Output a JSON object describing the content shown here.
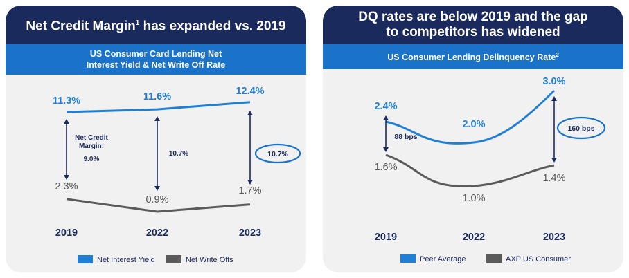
{
  "colors": {
    "navy": "#1b2a5c",
    "blue": "#1a73c9",
    "line_blue": "#1f7fd4",
    "gray": "#5b5b5b",
    "panel_bg": "#f1f1f1"
  },
  "left": {
    "title": "Net Credit Margin",
    "title_sup": "1",
    "title_suffix": " has expanded vs. 2019",
    "subtitle_line1": "US Consumer Card Lending Net",
    "subtitle_line2": "Interest Yield & Net Write Off Rate"
  },
  "right": {
    "title_line1": "DQ rates are below 2019 and the gap",
    "title_line2": "to competitors has widened",
    "subtitle": "US Consumer Lending Delinquency Rate",
    "subtitle_sup": "2"
  },
  "chart_data": [
    {
      "type": "line",
      "categories": [
        "2019",
        "2022",
        "2023"
      ],
      "series": [
        {
          "name": "Net Interest Yield",
          "values": [
            11.3,
            11.6,
            12.4
          ],
          "labels": [
            "11.3%",
            "11.6%",
            "12.4%"
          ],
          "color": "#1f7fd4"
        },
        {
          "name": "Net Write Offs",
          "values": [
            2.3,
            0.9,
            1.7
          ],
          "labels": [
            "2.3%",
            "0.9%",
            "1.7%"
          ],
          "color": "#5b5b5b"
        }
      ],
      "annotations": [
        {
          "category": "2019",
          "text_lines": [
            "Net Credit",
            "Margin:"
          ],
          "value": "9.0%"
        },
        {
          "category": "2022",
          "value": "10.7%"
        },
        {
          "category": "2023",
          "value": "10.7%",
          "circled": true
        }
      ],
      "legend_position": "bottom"
    },
    {
      "type": "line",
      "categories": [
        "2019",
        "2022",
        "2023"
      ],
      "series": [
        {
          "name": "Peer Average",
          "values": [
            2.4,
            2.0,
            3.0
          ],
          "labels": [
            "2.4%",
            "2.0%",
            "3.0%"
          ],
          "color": "#1f7fd4"
        },
        {
          "name": "AXP US Consumer",
          "values": [
            1.6,
            1.0,
            1.4
          ],
          "labels": [
            "1.6%",
            "1.0%",
            "1.4%"
          ],
          "color": "#5b5b5b"
        }
      ],
      "annotations": [
        {
          "category": "2019",
          "value": "88 bps"
        },
        {
          "category": "2023",
          "value": "160 bps",
          "circled": true
        }
      ],
      "legend_position": "bottom"
    }
  ]
}
